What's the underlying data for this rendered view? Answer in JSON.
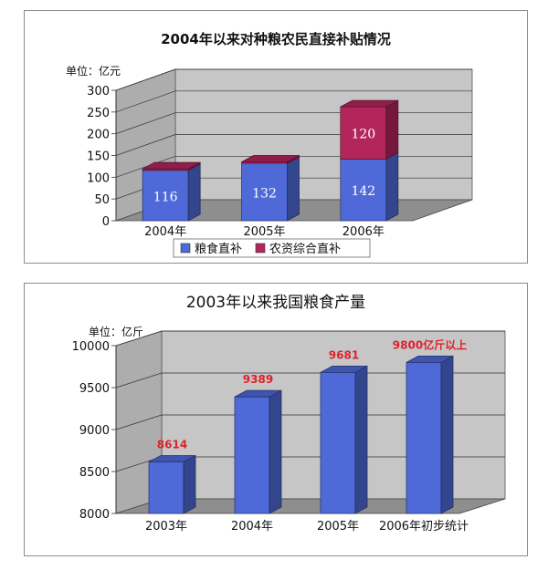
{
  "chart_data": [
    {
      "type": "bar",
      "stacked": true,
      "title": "2004年以来对种粮农民直接补贴情况",
      "unit_label": "单位：亿元",
      "categories": [
        "2004年",
        "2005年",
        "2006年"
      ],
      "series": [
        {
          "name": "粮食直补",
          "values": [
            116,
            132,
            142
          ],
          "color": "#4f6ad8"
        },
        {
          "name": "农资综合直补",
          "values": [
            0,
            0,
            120
          ],
          "color": "#b3265c"
        }
      ],
      "ylim": [
        0,
        300
      ],
      "yticks": [
        0,
        50,
        100,
        150,
        200,
        250,
        300
      ],
      "data_labels": [
        {
          "category": 0,
          "series": 0,
          "text": "116"
        },
        {
          "category": 1,
          "series": 0,
          "text": "132"
        },
        {
          "category": 2,
          "series": 0,
          "text": "142"
        },
        {
          "category": 2,
          "series": 1,
          "text": "120"
        }
      ],
      "grid": true,
      "legend_position": "bottom"
    },
    {
      "type": "bar",
      "title": "2003年以来我国粮食产量",
      "unit_label": "单位：亿斤",
      "categories": [
        "2003年",
        "2004年",
        "2005年",
        "2006年初步统计"
      ],
      "values": [
        8614,
        9389,
        9681,
        9800
      ],
      "data_labels": [
        "8614",
        "9389",
        "9681",
        "9800亿斤以上"
      ],
      "label_color": "#e0202a",
      "bar_color": "#4f6ad8",
      "ylim": [
        8000,
        10000
      ],
      "yticks": [
        8000,
        8500,
        9000,
        9500,
        10000
      ],
      "grid": true
    }
  ]
}
